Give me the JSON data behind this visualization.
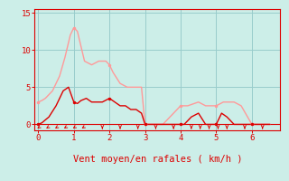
{
  "bg_color": "#cceee8",
  "line1_color": "#ff9999",
  "line2_color": "#dd0000",
  "marker_color": "#dd0000",
  "axis_color": "#dd0000",
  "xlabel": "Vent moyen/en rafales ( km/h )",
  "xlim": [
    -0.1,
    6.8
  ],
  "ylim": [
    -0.8,
    15.5
  ],
  "yticks": [
    0,
    5,
    10,
    15
  ],
  "xticks": [
    0,
    1,
    2,
    3,
    4,
    5,
    6
  ],
  "line1_x": [
    0.0,
    0.1,
    0.2,
    0.4,
    0.6,
    0.75,
    0.9,
    1.0,
    1.1,
    1.3,
    1.5,
    1.7,
    1.9,
    2.0,
    2.1,
    2.3,
    2.5,
    2.7,
    2.9,
    3.0,
    3.5,
    4.0,
    4.2,
    4.5,
    4.7,
    5.0,
    5.2,
    5.5,
    5.7,
    6.0,
    6.5
  ],
  "line1_y": [
    3.0,
    3.2,
    3.5,
    4.5,
    6.5,
    9.0,
    12.0,
    13.0,
    12.5,
    8.5,
    8.0,
    8.5,
    8.5,
    8.0,
    7.0,
    5.5,
    5.0,
    5.0,
    5.0,
    0.0,
    0.0,
    2.5,
    2.5,
    3.0,
    2.5,
    2.5,
    3.0,
    3.0,
    2.5,
    0.0,
    0.0
  ],
  "line2_x": [
    0.0,
    0.1,
    0.3,
    0.5,
    0.7,
    0.85,
    1.0,
    1.1,
    1.2,
    1.35,
    1.5,
    1.65,
    1.8,
    2.0,
    2.15,
    2.3,
    2.45,
    2.6,
    2.75,
    2.9,
    3.0,
    3.5,
    4.0,
    4.1,
    4.3,
    4.5,
    4.7,
    4.9,
    5.0,
    5.15,
    5.3,
    5.5,
    5.7,
    6.0,
    6.5
  ],
  "line2_y": [
    0.0,
    0.2,
    1.0,
    2.5,
    4.5,
    5.0,
    3.0,
    2.8,
    3.2,
    3.5,
    3.0,
    3.0,
    3.0,
    3.5,
    3.0,
    2.5,
    2.5,
    2.0,
    2.0,
    1.5,
    0.0,
    0.0,
    0.0,
    0.0,
    1.0,
    1.5,
    0.0,
    0.0,
    0.0,
    1.5,
    1.0,
    0.0,
    0.0,
    0.0,
    0.0
  ],
  "markers1_x": [
    0.0,
    1.0,
    2.0,
    3.0,
    4.0,
    5.0,
    6.0
  ],
  "markers1_y": [
    3.0,
    13.0,
    8.0,
    0.0,
    2.5,
    2.5,
    0.0
  ],
  "markers2_x": [
    0.0,
    1.0,
    2.0,
    3.0,
    4.0,
    5.0,
    6.0
  ],
  "markers2_y": [
    0.0,
    3.0,
    3.5,
    0.0,
    0.0,
    0.0,
    0.0
  ],
  "diag_arrows_x": [
    0.05,
    0.3,
    0.55,
    0.8,
    1.05,
    1.3
  ],
  "down_arrows_x": [
    1.8,
    2.3,
    2.8,
    3.3,
    3.8,
    4.3,
    4.55,
    4.8,
    5.05,
    5.3,
    5.8,
    6.3
  ],
  "grid_color": "#99cccc",
  "xlabel_fontsize": 7.5
}
